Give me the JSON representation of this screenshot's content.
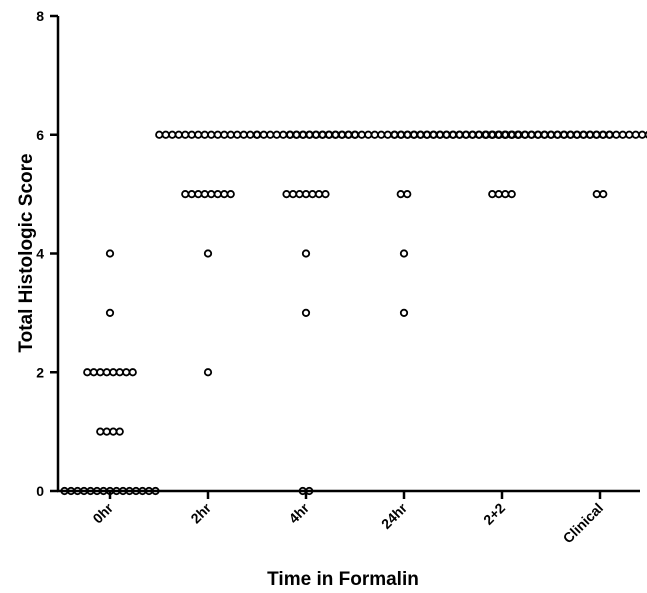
{
  "chart_data": {
    "type": "scatter",
    "title": "",
    "xlabel": "Time in Formalin",
    "ylabel": "Total Histologic Score",
    "ylim": [
      0,
      8
    ],
    "yticks": [
      0,
      2,
      4,
      6,
      8
    ],
    "grid": false,
    "legend": "none",
    "marker": "open-circle",
    "categories": [
      "0hr",
      "2hr",
      "4hr",
      "24hr",
      "2+2",
      "Clinical"
    ],
    "groups": [
      {
        "category": "0hr",
        "values": [
          4,
          3,
          2,
          2,
          2,
          2,
          2,
          2,
          2,
          2,
          1,
          1,
          1,
          1,
          0,
          0,
          0,
          0,
          0,
          0,
          0,
          0,
          0,
          0,
          0,
          0,
          0,
          0,
          0
        ]
      },
      {
        "category": "2hr",
        "values": [
          6,
          6,
          6,
          6,
          6,
          6,
          6,
          6,
          6,
          6,
          6,
          6,
          6,
          6,
          6,
          6,
          5,
          5,
          5,
          5,
          5,
          5,
          5,
          5,
          4,
          2
        ]
      },
      {
        "category": "4hr",
        "values": [
          6,
          6,
          6,
          6,
          6,
          6,
          6,
          6,
          6,
          6,
          6,
          6,
          6,
          6,
          6,
          6,
          5,
          5,
          5,
          5,
          5,
          5,
          5,
          4,
          3,
          0,
          0
        ]
      },
      {
        "category": "24hr",
        "values": [
          6,
          6,
          6,
          6,
          6,
          6,
          6,
          6,
          6,
          6,
          6,
          6,
          6,
          6,
          6,
          6,
          6,
          6,
          6,
          6,
          6,
          6,
          6,
          6,
          6,
          6,
          6,
          6,
          6,
          6,
          6,
          6,
          6,
          6,
          6,
          6,
          5,
          5,
          4,
          3
        ]
      },
      {
        "category": "2+2",
        "values": [
          6,
          6,
          6,
          6,
          6,
          6,
          6,
          6,
          6,
          6,
          6,
          6,
          6,
          6,
          6,
          6,
          6,
          6,
          6,
          6,
          6,
          6,
          6,
          6,
          6,
          6,
          6,
          6,
          6,
          6,
          6,
          6,
          6,
          6,
          5,
          5,
          5,
          5
        ]
      },
      {
        "category": "Clinical",
        "values": [
          6,
          6,
          6,
          6,
          6,
          6,
          6,
          6,
          6,
          6,
          6,
          6,
          6,
          6,
          6,
          6,
          6,
          6,
          6,
          6,
          6,
          6,
          6,
          6,
          6,
          6,
          6,
          6,
          6,
          6,
          6,
          6,
          6,
          6,
          6,
          6,
          5,
          5
        ]
      }
    ],
    "colors": {
      "marker": "#000000",
      "axis": "#000000"
    }
  }
}
